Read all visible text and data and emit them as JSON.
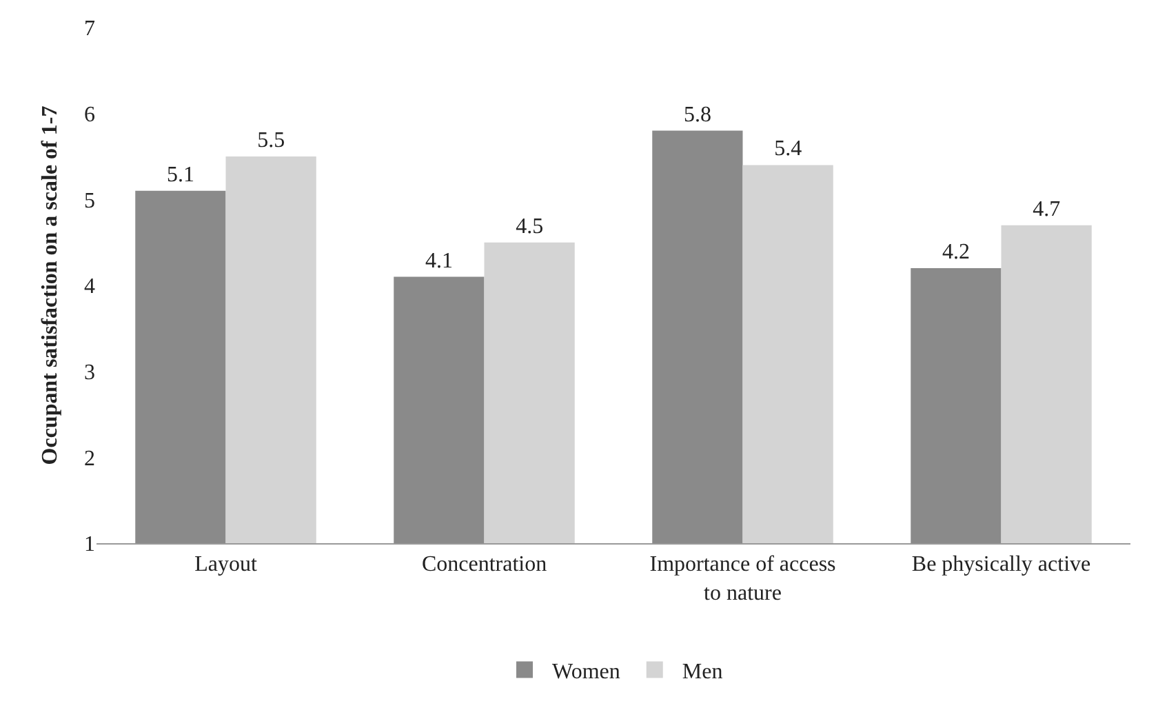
{
  "chart_data": {
    "type": "bar",
    "ylabel": "Occupant satisfaction on a scale of 1-7",
    "categories": [
      "Layout",
      "Concentration",
      "Importance of access to nature",
      "Be physically active"
    ],
    "series": [
      {
        "name": "Women",
        "color": "#8a8a8a",
        "values": [
          5.1,
          4.1,
          5.8,
          4.2
        ]
      },
      {
        "name": "Men",
        "color": "#d4d4d4",
        "values": [
          5.5,
          4.5,
          5.4,
          4.7
        ]
      }
    ],
    "ylim": [
      1,
      7
    ],
    "yticks": [
      1,
      2,
      3,
      4,
      5,
      6,
      7
    ],
    "legend": "bottom",
    "data_labels": true
  }
}
